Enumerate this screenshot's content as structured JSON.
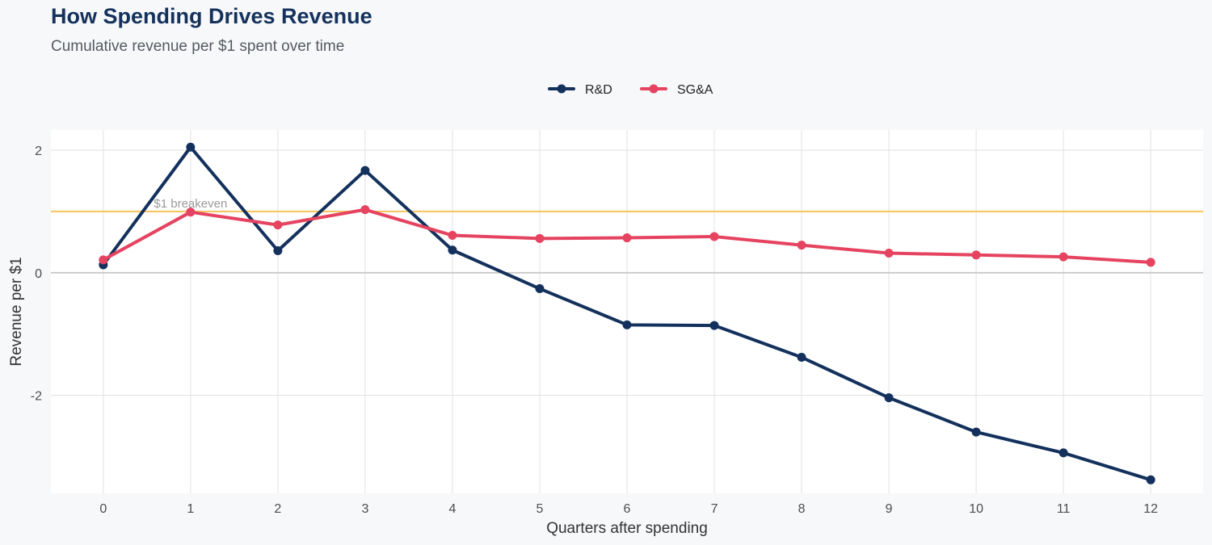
{
  "title": "How Spending Drives Revenue",
  "subtitle": "Cumulative revenue per $1 spent over time",
  "chart_data": {
    "type": "line",
    "x": [
      0,
      1,
      2,
      3,
      4,
      5,
      6,
      7,
      8,
      9,
      10,
      11,
      12
    ],
    "series": [
      {
        "name": "R&D",
        "color": "#13315c",
        "values": [
          0.13,
          2.05,
          0.36,
          1.67,
          0.37,
          -0.26,
          -0.85,
          -0.86,
          -1.38,
          -2.04,
          -2.6,
          -2.94,
          -3.38
        ]
      },
      {
        "name": "SG&A",
        "color": "#e54360",
        "values": [
          0.21,
          0.99,
          0.78,
          1.03,
          0.61,
          0.56,
          0.57,
          0.59,
          0.45,
          0.32,
          0.29,
          0.26,
          0.17
        ]
      }
    ],
    "xlabel": "Quarters after spending",
    "ylabel": "Revenue per $1",
    "xlim": [
      -0.6,
      12.6
    ],
    "ylim": [
      -3.6,
      2.33
    ],
    "yticks": [
      2,
      0,
      -2
    ],
    "ytick_labels": [
      "2",
      "0",
      "-2"
    ],
    "xtick_labels": [
      "0",
      "1",
      "2",
      "3",
      "4",
      "5",
      "6",
      "7",
      "8",
      "9",
      "10",
      "11",
      "12"
    ],
    "reference_line": {
      "value": 1,
      "label": "$1 breakeven",
      "label_x": 1,
      "color": "#f7c763"
    },
    "legend": "top-center",
    "grid": true
  }
}
